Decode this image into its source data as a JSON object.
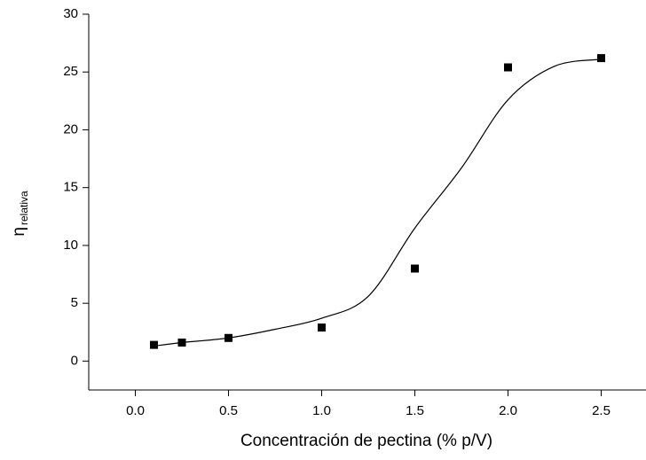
{
  "chart_data": {
    "type": "scatter",
    "xlabel": "Concentración de pectina (% p/V)",
    "ylabel": {
      "symbol": "η",
      "subscript": "relativa"
    },
    "xlim": [
      -0.25,
      2.75
    ],
    "ylim": [
      -2.5,
      30
    ],
    "xticks": [
      {
        "value": 0,
        "label": "0.0"
      },
      0.5,
      {
        "value": 1,
        "label": "1.0"
      },
      1.5,
      {
        "value": 2,
        "label": "2.0"
      },
      2.5
    ],
    "yticks": [
      0,
      5,
      10,
      15,
      20,
      25,
      30
    ],
    "series": [
      {
        "kind": "points",
        "color": "#000000",
        "x": [
          0.1,
          0.25,
          0.5,
          1.0,
          1.5,
          2.0,
          2.5
        ],
        "values": [
          1.4,
          1.6,
          2.0,
          2.9,
          8.0,
          25.4,
          26.2
        ]
      },
      {
        "kind": "fit",
        "color": "#000000",
        "x": [
          0.1,
          0.25,
          0.5,
          0.75,
          1.0,
          1.25,
          1.5,
          1.75,
          2.0,
          2.25,
          2.5
        ],
        "values": [
          1.3,
          1.6,
          2.0,
          2.75,
          3.7,
          5.6,
          11.5,
          16.7,
          22.6,
          25.5,
          26.1
        ]
      }
    ]
  }
}
